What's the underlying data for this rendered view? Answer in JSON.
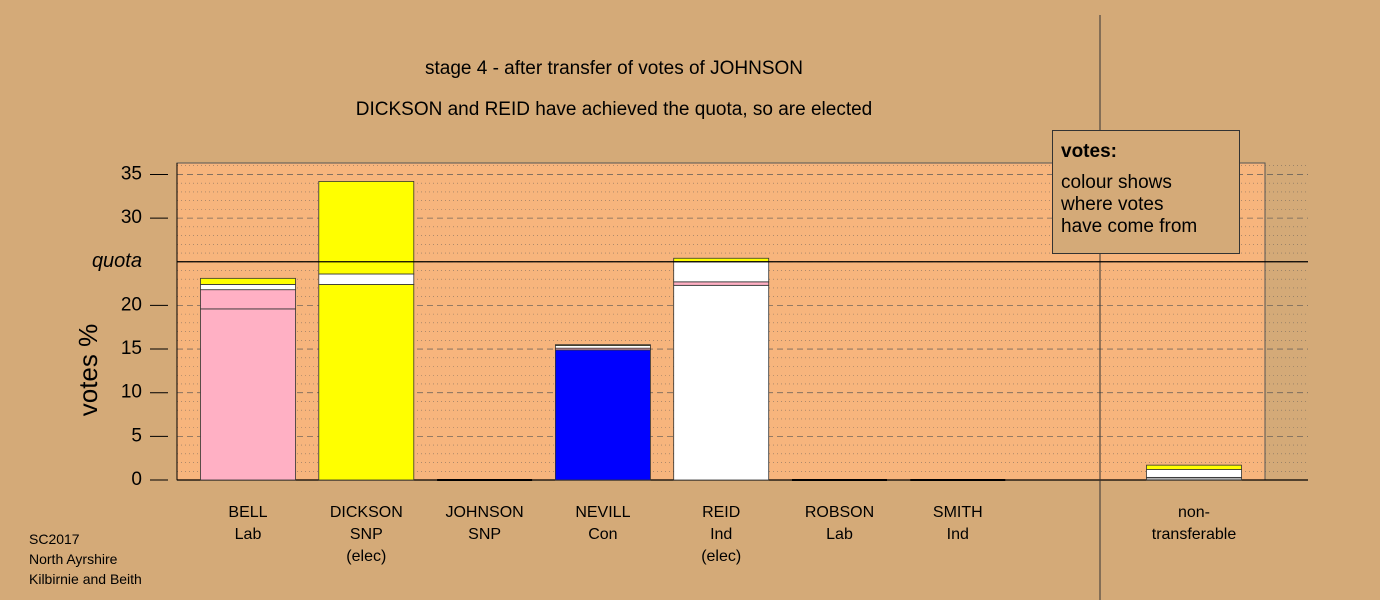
{
  "chart_data": {
    "type": "bar",
    "stacked": true,
    "title": "stage 4 - after transfer of votes of JOHNSON",
    "subtitle": "DICKSON and REID have achieved the quota, so are elected",
    "ylabel": "votes %",
    "ylim": [
      0,
      36
    ],
    "yticks": [
      0,
      5,
      10,
      15,
      20,
      25,
      30,
      35
    ],
    "quota": {
      "label": "quota",
      "value": 25
    },
    "grid": true,
    "categories": [
      {
        "name": "BELL",
        "party": "Lab",
        "status": ""
      },
      {
        "name": "DICKSON",
        "party": "SNP",
        "status": "(elec)"
      },
      {
        "name": "JOHNSON",
        "party": "SNP",
        "status": ""
      },
      {
        "name": "NEVILL",
        "party": "Con",
        "status": ""
      },
      {
        "name": "REID",
        "party": "Ind",
        "status": "(elec)"
      },
      {
        "name": "ROBSON",
        "party": "Lab",
        "status": ""
      },
      {
        "name": "SMITH",
        "party": "Ind",
        "status": ""
      }
    ],
    "nontransferable": {
      "label_line1": "non-",
      "label_line2": "transferable",
      "segments": [
        {
          "color": "#b0b0b0",
          "value": 0.3
        },
        {
          "color": "#ffffff",
          "value": 0.9
        },
        {
          "color": "#ffff00",
          "value": 0.5
        }
      ]
    },
    "stacks": [
      [
        {
          "color": "#ffb0c4",
          "value": 19.6
        },
        {
          "color": "#ffb0c4",
          "value": 2.2
        },
        {
          "color": "#ffffff",
          "value": 0.6
        },
        {
          "color": "#ffff00",
          "value": 0.7
        }
      ],
      [
        {
          "color": "#ffff00",
          "value": 22.4
        },
        {
          "color": "#ffffff",
          "value": 1.2
        },
        {
          "color": "#ffff00",
          "value": 10.6
        }
      ],
      [],
      [
        {
          "color": "#0000ff",
          "value": 14.9
        },
        {
          "color": "#ffb0c4",
          "value": 0.2
        },
        {
          "color": "#ffffff",
          "value": 0.3
        },
        {
          "color": "#ffff00",
          "value": 0.1
        }
      ],
      [
        {
          "color": "#ffffff",
          "value": 22.3
        },
        {
          "color": "#ffb0c4",
          "value": 0.4
        },
        {
          "color": "#ffffff",
          "value": 2.3
        },
        {
          "color": "#ffff00",
          "value": 0.4
        }
      ],
      [],
      []
    ]
  },
  "legend": {
    "title": "votes:",
    "body_line1": "colour shows",
    "body_line2": "where votes",
    "body_line3": "have come from"
  },
  "footer": {
    "line1": "SC2017",
    "line2": "North Ayrshire",
    "line3": "Kilbirnie and Beith"
  },
  "colors": {
    "background": "#d4aa78",
    "plot_background": "#f7b57d"
  }
}
